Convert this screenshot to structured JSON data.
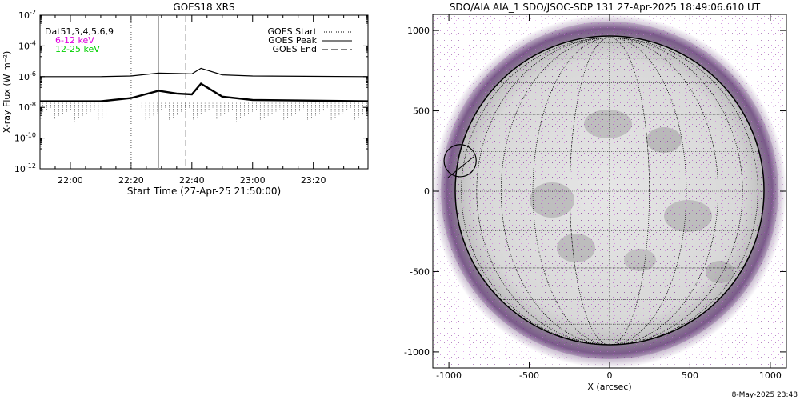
{
  "chart_data": [
    {
      "type": "line",
      "title": "GOES18 XRS",
      "xlabel": "Start Time (27-Apr-25 21:50:00)",
      "ylabel": "X-ray Flux (W m⁻²)",
      "y_scale": "log",
      "xlim": [
        "21:50",
        "23:38"
      ],
      "ylim": [
        1e-12,
        0.01
      ],
      "x_ticks": [
        "22:00",
        "22:20",
        "22:40",
        "23:00",
        "23:20"
      ],
      "y_tick_exponents": [
        "-2",
        "-4",
        "-6",
        "-8",
        "-10",
        "-12"
      ],
      "y_tick_base": "10",
      "legend_position": "top-left",
      "legend_entries": [
        {
          "label": "Dat51,3,4,5,6,9",
          "color": "#000000"
        },
        {
          "label": "6-12 keV",
          "color": "#e000e0"
        },
        {
          "label": "12-25 keV",
          "color": "#00d000"
        }
      ],
      "markers": [
        {
          "label": "GOES Start",
          "time": "22:20",
          "style": "dotted"
        },
        {
          "label": "GOES Peak",
          "time": "22:29",
          "style": "solid"
        },
        {
          "label": "GOES End",
          "time": "22:38",
          "style": "dashed"
        }
      ],
      "series": [
        {
          "name": "6-12 keV",
          "x": [
            "21:50",
            "22:10",
            "22:20",
            "22:29",
            "22:35",
            "22:40",
            "22:43",
            "22:50",
            "23:00",
            "23:38"
          ],
          "values": [
            1e-06,
            1e-06,
            1.1e-06,
            1.7e-06,
            1.6e-06,
            1.5e-06,
            3.5e-06,
            1.3e-06,
            1.1e-06,
            1e-06
          ]
        },
        {
          "name": "12-25 keV",
          "x": [
            "21:50",
            "22:10",
            "22:20",
            "22:29",
            "22:35",
            "22:40",
            "22:43",
            "22:50",
            "23:00",
            "23:38"
          ],
          "values": [
            2.5e-08,
            2.5e-08,
            4e-08,
            1.2e-07,
            8e-08,
            7e-08,
            3.5e-07,
            5e-08,
            3e-08,
            2.5e-08
          ]
        }
      ]
    },
    {
      "type": "image",
      "title": "SDO/AIA AIA_1 SDO/JSOC-SDP 131 27-Apr-2025 18:49:06.610 UT",
      "xlabel": "X (arcsec)",
      "ylabel": "",
      "xlim": [
        -1100,
        1100
      ],
      "ylim": [
        -1100,
        1100
      ],
      "x_ticks": [
        "-1000",
        "-500",
        "0",
        "500",
        "1000"
      ],
      "y_ticks": [
        "1000",
        "500",
        "0",
        "-500",
        "-1000"
      ],
      "solar_radius_arcsec": 955,
      "highlight_circle": {
        "x": -930,
        "y": 190,
        "r": 100
      }
    }
  ],
  "footer_timestamp": "8-May-2025 23:48"
}
